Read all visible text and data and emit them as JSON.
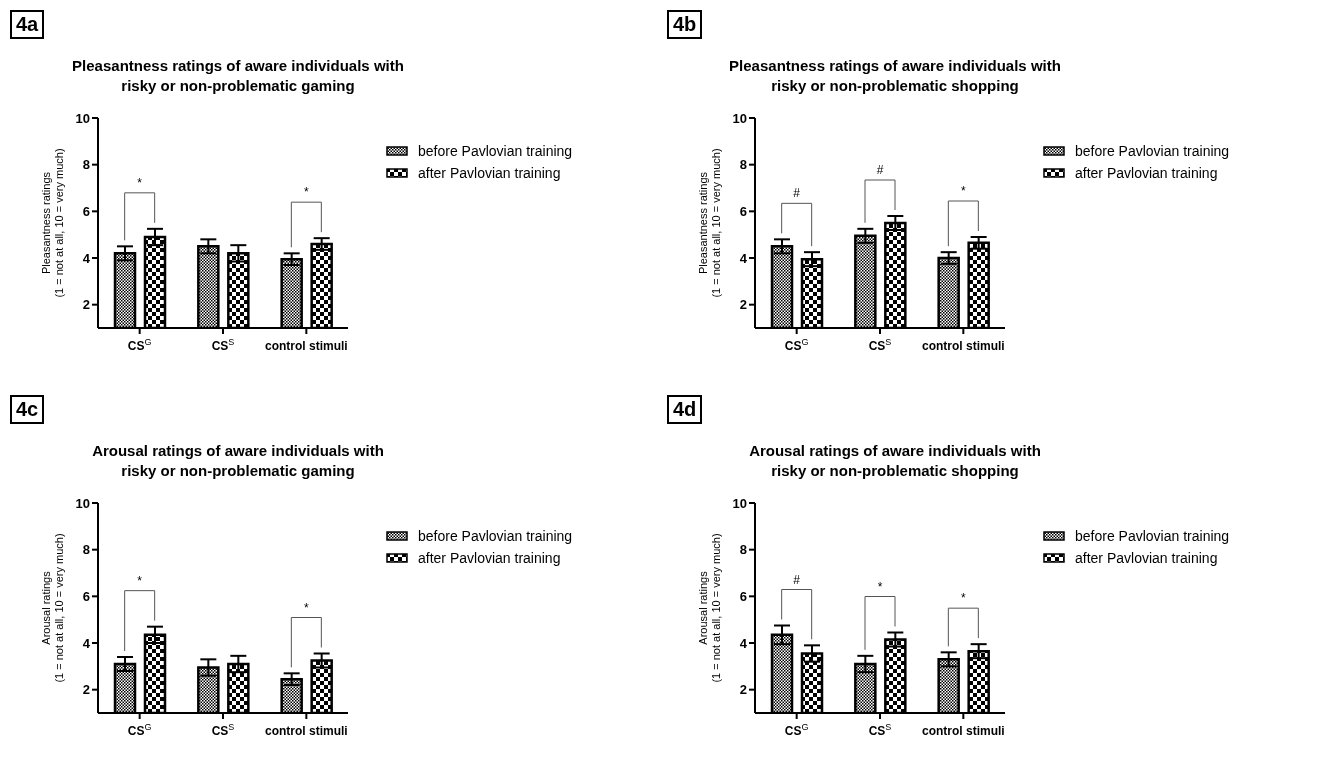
{
  "chart_data": [
    {
      "type": "bar",
      "title": "Pleasantness ratings of aware individuals with\nrisky or non-problematic gaming",
      "ylabel": "Pleasantness ratings\n(1 =  not at all, 10 = very much)",
      "categories": [
        "CS$^{G}$",
        "CS$^{S}$",
        "control stimuli"
      ],
      "ylim": [
        1,
        10
      ],
      "yticks": [
        2,
        4,
        6,
        8,
        10
      ],
      "grid": false,
      "legend": "right",
      "series": [
        {
          "name": "before Pavlovian training",
          "color": "#000000",
          "values": [
            4.2,
            4.5,
            3.95
          ],
          "errors": [
            0.3,
            0.3,
            0.25
          ]
        },
        {
          "name": "after Pavlovian training",
          "color": "#000000",
          "values": [
            4.9,
            4.2,
            4.6
          ],
          "errors": [
            0.35,
            0.35,
            0.25
          ]
        }
      ],
      "annotations": [
        "4a",
        "*",
        "*"
      ]
    },
    {
      "type": "bar",
      "title": "Pleasantness ratings of aware individuals with\nrisky or non-problematic shopping",
      "ylabel": "Pleasantness ratings\n(1 =  not at all, 10 = very much)",
      "categories": [
        "CS$^{G}$",
        "CS$^{S}$",
        "control stimuli"
      ],
      "ylim": [
        1,
        10
      ],
      "yticks": [
        2,
        4,
        6,
        8,
        10
      ],
      "grid": false,
      "legend": "right",
      "series": [
        {
          "name": "before Pavlovian training",
          "color": "#000000",
          "values": [
            4.5,
            4.95,
            4.0
          ],
          "errors": [
            0.3,
            0.3,
            0.25
          ]
        },
        {
          "name": "after Pavlovian training",
          "color": "#000000",
          "values": [
            3.95,
            5.5,
            4.65
          ],
          "errors": [
            0.3,
            0.3,
            0.25
          ]
        }
      ],
      "annotations": [
        "4b",
        "#",
        "#",
        "*"
      ]
    },
    {
      "type": "bar",
      "title": "Arousal ratings of aware individuals with\nrisky or non-problematic gaming",
      "ylabel": "Arousal ratings\n(1 =  not at all, 10 = very much)",
      "categories": [
        "CS$^{G}$",
        "CS$^{S}$",
        "control stimuli"
      ],
      "ylim": [
        1,
        10
      ],
      "yticks": [
        2,
        4,
        6,
        8,
        10
      ],
      "grid": false,
      "legend": "right",
      "series": [
        {
          "name": "before Pavlovian training",
          "color": "#000000",
          "values": [
            3.1,
            2.95,
            2.45
          ],
          "errors": [
            0.3,
            0.35,
            0.25
          ]
        },
        {
          "name": "after Pavlovian training",
          "color": "#000000",
          "values": [
            4.35,
            3.1,
            3.25
          ],
          "errors": [
            0.35,
            0.35,
            0.3
          ]
        }
      ],
      "annotations": [
        "4c",
        "*",
        "*"
      ]
    },
    {
      "type": "bar",
      "title": "Arousal ratings of aware individuals with\nrisky or non-problematic shopping",
      "ylabel": "Arousal ratings\n(1 =  not at all, 10 = very much)",
      "categories": [
        "CS$^{G}$",
        "CS$^{S}$",
        "control stimuli"
      ],
      "ylim": [
        1,
        10
      ],
      "yticks": [
        2,
        4,
        6,
        8,
        10
      ],
      "grid": false,
      "legend": "right",
      "series": [
        {
          "name": "before Pavlovian training",
          "color": "#000000",
          "values": [
            4.35,
            3.1,
            3.3
          ],
          "errors": [
            0.4,
            0.35,
            0.3
          ]
        },
        {
          "name": "after Pavlovian training",
          "color": "#000000",
          "values": [
            3.55,
            4.15,
            3.65
          ],
          "errors": [
            0.35,
            0.3,
            0.3
          ]
        }
      ],
      "annotations": [
        "4d",
        "#",
        "*",
        "*"
      ]
    }
  ]
}
